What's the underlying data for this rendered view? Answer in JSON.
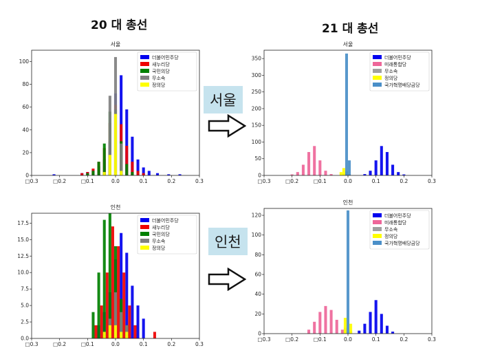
{
  "headings": {
    "left": "20 대 총선",
    "right": "21 대 총선"
  },
  "badges": {
    "seoul": "서울",
    "incheon": "인천"
  },
  "chart_data": [
    {
      "id": "p20s",
      "type": "bar",
      "title": "서울",
      "xlim": [
        -0.3,
        0.3
      ],
      "ylim": [
        0,
        110
      ],
      "xticks": [
        -0.3,
        -0.2,
        -0.1,
        0.0,
        0.1,
        0.2,
        0.3
      ],
      "xtick_labels": [
        "□0.3",
        "□0.2",
        "□0.1",
        "0.0",
        "0.1",
        "0.2",
        "0.3"
      ],
      "yticks": [
        0,
        20,
        40,
        60,
        80,
        100
      ],
      "legend_position": "top-right",
      "series": [
        {
          "name": "더불어민주당",
          "color": "#0000ee",
          "x": [
            -0.22,
            -0.12,
            -0.1,
            -0.08,
            -0.06,
            -0.04,
            -0.02,
            0,
            0.02,
            0.04,
            0.06,
            0.08,
            0.1,
            0.12,
            0.15,
            0.19,
            0.23
          ],
          "values": [
            1,
            2,
            3,
            5,
            8,
            14,
            30,
            72,
            88,
            58,
            34,
            14,
            7,
            4,
            2,
            1,
            1
          ]
        },
        {
          "name": "새누리당",
          "color": "#ee0000",
          "x": [
            -0.12,
            -0.1,
            -0.08,
            -0.06,
            -0.04,
            -0.02,
            0,
            0.02,
            0.04,
            0.06,
            0.08,
            0.1
          ],
          "values": [
            2,
            3,
            6,
            12,
            24,
            46,
            62,
            45,
            26,
            12,
            4,
            2
          ]
        },
        {
          "name": "국민의당",
          "color": "#008000",
          "x": [
            -0.1,
            -0.08,
            -0.06,
            -0.04,
            -0.02,
            0,
            0.02,
            0.04,
            0.06
          ],
          "values": [
            2,
            4,
            12,
            28,
            56,
            58,
            30,
            10,
            3
          ]
        },
        {
          "name": "무소속",
          "color": "#808080",
          "x": [
            -0.02,
            0,
            0.02
          ],
          "values": [
            70,
            104,
            28
          ]
        },
        {
          "name": "정의당",
          "color": "#ffff00",
          "x": [
            -0.04,
            -0.02,
            0,
            0.02
          ],
          "values": [
            3,
            18,
            54,
            4
          ]
        }
      ]
    },
    {
      "id": "p21s",
      "type": "bar",
      "title": "서울",
      "xlim": [
        -0.3,
        0.3
      ],
      "ylim": [
        0,
        375
      ],
      "xticks": [
        -0.3,
        -0.2,
        -0.1,
        0.0,
        0.1,
        0.2,
        0.3
      ],
      "xtick_labels": [
        "□0.3",
        "□0.2",
        "□0.1",
        "0.0",
        "0.1",
        "0.2",
        "0.3"
      ],
      "yticks": [
        0,
        50,
        100,
        150,
        200,
        250,
        300,
        350
      ],
      "legend_position": "top-right",
      "series": [
        {
          "name": "더불어민주당",
          "color": "#0000ee",
          "x": [
            0.06,
            0.08,
            0.1,
            0.12,
            0.14,
            0.16,
            0.18,
            0.2
          ],
          "values": [
            4,
            14,
            45,
            88,
            70,
            32,
            10,
            3
          ]
        },
        {
          "name": "미래통합당",
          "color": "#ee6699",
          "x": [
            -0.2,
            -0.18,
            -0.16,
            -0.14,
            -0.12,
            -0.1,
            -0.08,
            -0.06
          ],
          "values": [
            3,
            10,
            32,
            70,
            88,
            45,
            14,
            4
          ]
        },
        {
          "name": "무소속",
          "color": "#a0a0a0",
          "x": [
            -0.015,
            -0.005,
            0.005
          ],
          "values": [
            6,
            12,
            4
          ]
        },
        {
          "name": "정의당",
          "color": "#ffff00",
          "x": [
            -0.025,
            -0.015
          ],
          "values": [
            10,
            22
          ]
        },
        {
          "name": "국가혁명배당금당",
          "color": "#4a8fc8",
          "x": [
            -0.005,
            0.005
          ],
          "values": [
            365,
            45
          ]
        }
      ]
    },
    {
      "id": "p20i",
      "type": "bar",
      "title": "인천",
      "xlim": [
        -0.3,
        0.3
      ],
      "ylim": [
        0,
        19
      ],
      "xticks": [
        -0.3,
        -0.2,
        -0.1,
        0.0,
        0.1,
        0.2,
        0.3
      ],
      "xtick_labels": [
        "□0.3",
        "□0.2",
        "□0.1",
        "0.0",
        "0.1",
        "0.2",
        "0.3"
      ],
      "yticks": [
        0.0,
        2.5,
        5.0,
        7.5,
        10.0,
        12.5,
        15.0,
        17.5
      ],
      "ytick_labels": [
        "0.0",
        "2.5",
        "5.0",
        "7.5",
        "10.0",
        "12.5",
        "15.0",
        "17.5"
      ],
      "legend_position": "top-right",
      "series": [
        {
          "name": "더불어민주당",
          "color": "#0000ee",
          "x": [
            -0.06,
            -0.04,
            -0.02,
            0,
            0.02,
            0.04,
            0.06,
            0.08,
            0.1
          ],
          "values": [
            2,
            4,
            7,
            12,
            16,
            13,
            8,
            5,
            3
          ]
        },
        {
          "name": "새누리당",
          "color": "#ee0000",
          "x": [
            -0.07,
            -0.05,
            -0.03,
            -0.01,
            0.01,
            0.03,
            0.05,
            0.07,
            0.14
          ],
          "values": [
            2,
            5,
            10,
            17,
            14,
            10,
            5,
            2,
            1
          ]
        },
        {
          "name": "국민의당",
          "color": "#008000",
          "x": [
            -0.08,
            -0.06,
            -0.04,
            -0.02,
            0,
            0.02,
            0.04
          ],
          "values": [
            4,
            10,
            18,
            19,
            14,
            6,
            2
          ]
        },
        {
          "name": "무소속",
          "color": "#808080",
          "x": [
            -0.02,
            0,
            0.02,
            0.04
          ],
          "values": [
            3,
            7,
            4,
            2
          ]
        },
        {
          "name": "정의당",
          "color": "#ffff00",
          "x": [
            -0.04,
            -0.02,
            0,
            0.02,
            0.04
          ],
          "values": [
            1,
            2,
            2,
            1,
            1
          ]
        }
      ]
    },
    {
      "id": "p21i",
      "type": "bar",
      "title": "인천",
      "xlim": [
        -0.3,
        0.3
      ],
      "ylim": [
        0,
        127
      ],
      "xticks": [
        -0.3,
        -0.2,
        -0.1,
        0.0,
        0.1,
        0.2,
        0.3
      ],
      "xtick_labels": [
        "□0.3",
        "□0.2",
        "□0.1",
        "0.0",
        "0.1",
        "0.2",
        "0.3"
      ],
      "yticks": [
        0,
        20,
        40,
        60,
        80,
        100,
        120
      ],
      "legend_position": "top-right",
      "series": [
        {
          "name": "더불어민주당",
          "color": "#0000ee",
          "x": [
            0.04,
            0.06,
            0.08,
            0.1,
            0.12,
            0.14,
            0.16
          ],
          "values": [
            3,
            10,
            22,
            34,
            20,
            8,
            2
          ]
        },
        {
          "name": "미래통합당",
          "color": "#ee6699",
          "x": [
            -0.14,
            -0.12,
            -0.1,
            -0.08,
            -0.06,
            -0.04,
            -0.02
          ],
          "values": [
            4,
            12,
            22,
            28,
            24,
            14,
            4
          ]
        },
        {
          "name": "무소속",
          "color": "#a0a0a0",
          "x": [
            -0.01,
            0.01
          ],
          "values": [
            6,
            3
          ]
        },
        {
          "name": "정의당",
          "color": "#ffff00",
          "x": [
            -0.01,
            0.01
          ],
          "values": [
            16,
            10
          ]
        },
        {
          "name": "국가혁명배당금당",
          "color": "#4a8fc8",
          "x": [
            0
          ],
          "values": [
            125
          ]
        }
      ]
    }
  ]
}
